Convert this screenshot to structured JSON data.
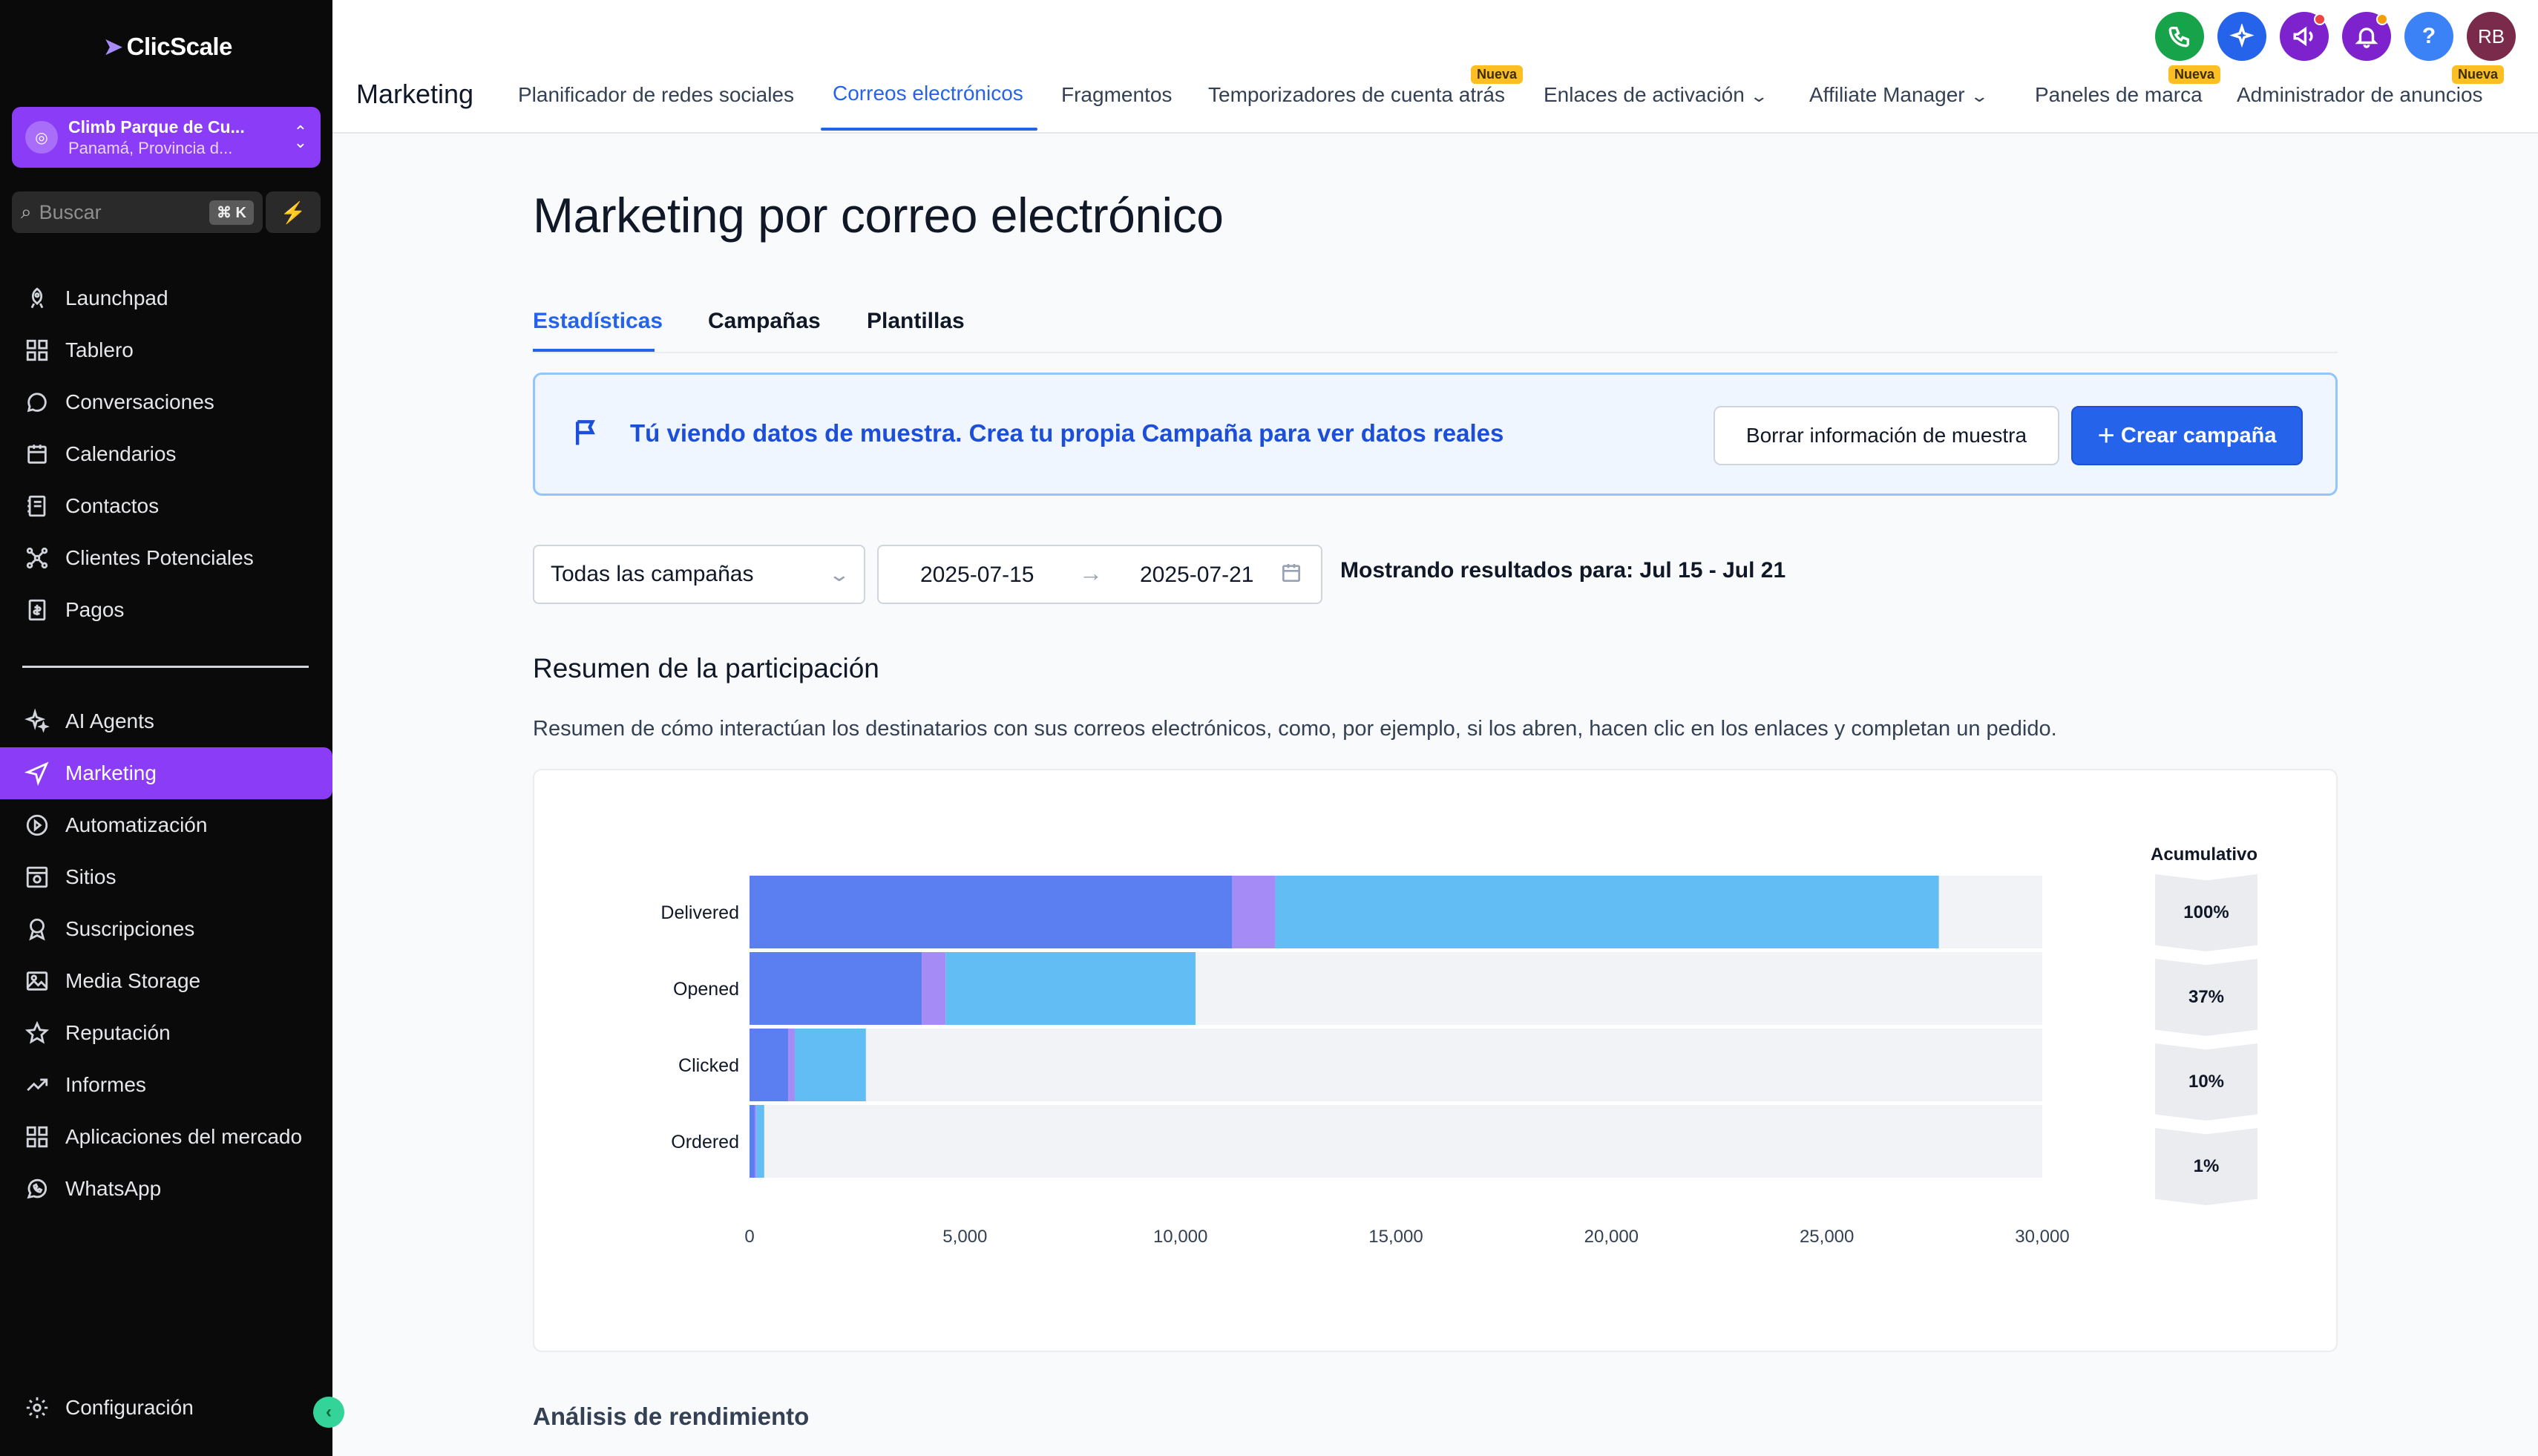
{
  "sidebar": {
    "logo": "ClicScale",
    "account": {
      "name": "Climb Parque de Cu...",
      "location": "Panamá, Provincia d..."
    },
    "search": {
      "label": "Buscar",
      "shortcut": "⌘ K"
    },
    "items": [
      {
        "label": "Launchpad",
        "icon": "rocket-icon"
      },
      {
        "label": "Tablero",
        "icon": "dashboard-grid-icon"
      },
      {
        "label": "Conversaciones",
        "icon": "chat-bubble-icon"
      },
      {
        "label": "Calendarios",
        "icon": "calendar-icon"
      },
      {
        "label": "Contactos",
        "icon": "contacts-book-icon"
      },
      {
        "label": "Clientes Potenciales",
        "icon": "leads-network-icon"
      },
      {
        "label": "Pagos",
        "icon": "payments-icon"
      },
      {
        "label": "AI Agents",
        "icon": "sparkles-icon"
      },
      {
        "label": "Marketing",
        "icon": "send-icon",
        "active": true
      },
      {
        "label": "Automatización",
        "icon": "automation-icon"
      },
      {
        "label": "Sitios",
        "icon": "sites-icon"
      },
      {
        "label": "Suscripciones",
        "icon": "award-icon"
      },
      {
        "label": "Media Storage",
        "icon": "image-icon"
      },
      {
        "label": "Reputación",
        "icon": "star-icon"
      },
      {
        "label": "Informes",
        "icon": "trending-icon"
      },
      {
        "label": "Aplicaciones del mercado",
        "icon": "apps-grid-icon"
      },
      {
        "label": "WhatsApp",
        "icon": "whatsapp-icon"
      }
    ],
    "settings": {
      "label": "Configuración",
      "icon": "gear-icon"
    }
  },
  "topbar": {
    "title": "Marketing",
    "tabs": [
      {
        "label": "Planificador de redes sociales"
      },
      {
        "label": "Correos electrónicos",
        "active": true
      },
      {
        "label": "Fragmentos"
      },
      {
        "label": "Temporizadores de cuenta atrás",
        "badge": "Nueva"
      },
      {
        "label": "Enlaces de activación",
        "dropdown": true
      },
      {
        "label": "Affiliate Manager",
        "dropdown": true
      },
      {
        "label": "Paneles de marca",
        "badge": "Nueva"
      },
      {
        "label": "Administrador de anuncios",
        "badge": "Nueva"
      }
    ],
    "avatar_initials": "RB",
    "help_label": "?"
  },
  "page": {
    "title": "Marketing por correo electrónico",
    "subtabs": [
      {
        "label": "Estadísticas",
        "active": true
      },
      {
        "label": "Campañas"
      },
      {
        "label": "Plantillas"
      }
    ],
    "banner": {
      "text": "Tú viendo datos de muestra. Crea tu propia Campaña para ver datos reales",
      "clear_button": "Borrar información de muestra",
      "create_button": "Crear campaña"
    },
    "filters": {
      "campaign_select": "Todas las campañas",
      "date_start": "2025-07-15",
      "date_end": "2025-07-21",
      "results_text": "Mostrando resultados para: Jul 15 - Jul 21"
    },
    "engagement": {
      "title": "Resumen de la participación",
      "description": "Resumen de cómo interactúan los destinatarios con sus correos electrónicos, como, por ejemplo, si los abren, hacen clic en los enlaces y completan un pedido.",
      "cumulative_title": "Acumulativo"
    },
    "performance_title": "Análisis de rendimiento"
  },
  "colors": {
    "accent_purple": "#8b3cf7",
    "primary_blue": "#2563eb",
    "series_1": "#5b7ff0",
    "series_2": "#a48bf5",
    "series_3": "#62bdf5",
    "track": "#f2f3f6"
  },
  "chart_data": {
    "type": "bar",
    "orientation": "horizontal",
    "stacked": true,
    "categories": [
      "Delivered",
      "Opened",
      "Clicked",
      "Ordered"
    ],
    "series": [
      {
        "values": [
          11200,
          4000,
          900,
          120
        ]
      },
      {
        "values": [
          1000,
          550,
          150,
          40
        ]
      },
      {
        "values": [
          15400,
          5800,
          1650,
          180
        ]
      }
    ],
    "xlim": [
      0,
      30000
    ],
    "xticks": [
      "0",
      "5,000",
      "10,000",
      "15,000",
      "20,000",
      "25,000",
      "30,000"
    ],
    "cumulative": [
      "100%",
      "37%",
      "10%",
      "1%"
    ],
    "grid": false,
    "legend": "none"
  }
}
